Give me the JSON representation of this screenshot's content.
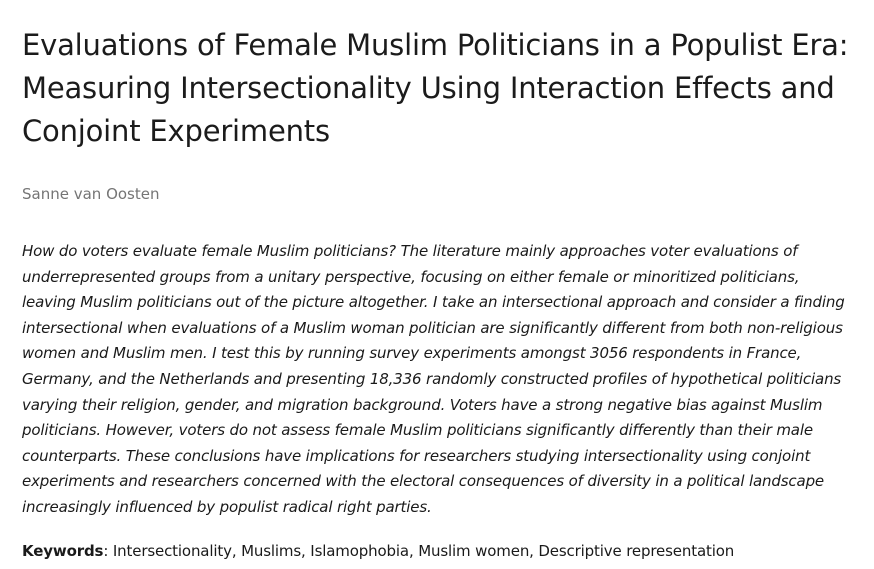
{
  "article": {
    "title": "Evaluations of Female Muslim Politicians in a Populist Era: Measuring Intersectionality Using Interaction Effects and Conjoint Experiments",
    "author": "Sanne van Oosten",
    "abstract": "How do voters evaluate female Muslim politicians? The literature mainly approaches voter evaluations of underrepresented groups from a unitary perspective, focusing on either female or minoritized politicians, leaving Muslim politicians out of the picture altogether. I take an intersectional approach and consider a finding intersectional when evaluations of a Muslim woman politician are significantly different from both non-religious women and Muslim men. I test this by running survey experiments amongst 3056 respondents in France, Germany, and the Netherlands and presenting 18,336 randomly constructed profiles of hypothetical politicians varying their religion, gender, and migration background. Voters have a strong negative bias against Muslim politicians. However, voters do not assess female Muslim politicians significantly differently than their male counterparts. These conclusions have implications for researchers studying intersectionality using conjoint experiments and researchers concerned with the electoral consequences of diversity in a political landscape increasingly influenced by populist radical right parties.",
    "keywords_label": "Keywords",
    "keywords_separator": ": ",
    "keywords": "Intersectionality, Muslims, Islamophobia, Muslim women, Descriptive representation"
  }
}
